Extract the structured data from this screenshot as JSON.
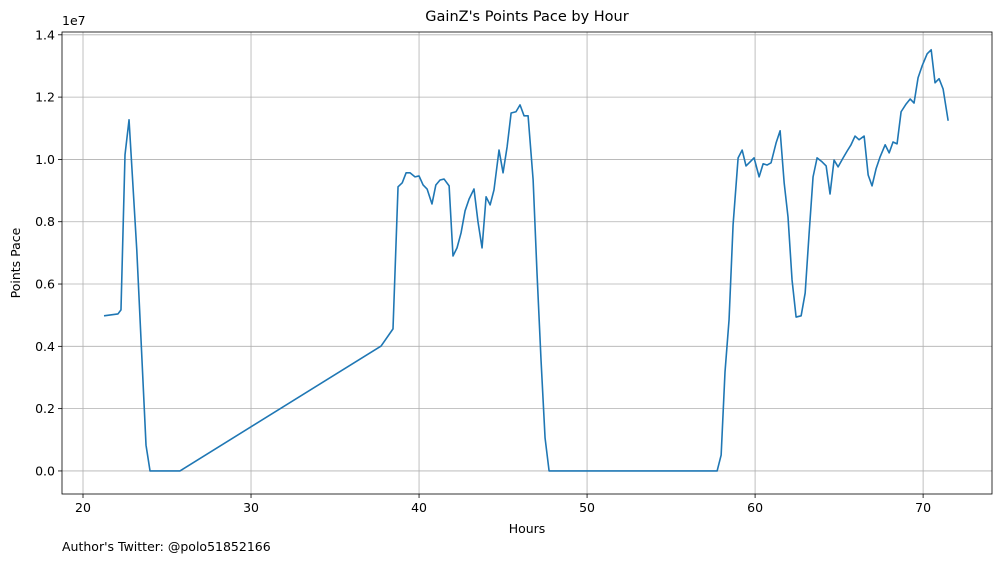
{
  "chart_data": {
    "type": "line",
    "title": "GainZ's Points Pace by Hour",
    "xlabel": "Hours",
    "ylabel": "Points Pace",
    "y_offset_label": "1e7",
    "footnote": "Author's Twitter: @polo51852166",
    "color": "#1f77b4",
    "grid": true,
    "x": [
      21.25,
      22.08,
      22.26,
      22.5,
      22.74,
      23.2,
      23.75,
      23.99,
      25.77,
      37.74,
      38.45,
      38.75,
      39.0,
      39.23,
      39.46,
      39.76,
      40.0,
      40.24,
      40.48,
      40.77,
      41.0,
      41.25,
      41.49,
      41.79,
      42.02,
      42.26,
      42.5,
      42.74,
      42.98,
      43.27,
      43.51,
      43.75,
      43.99,
      44.23,
      44.46,
      44.76,
      45.0,
      45.24,
      45.48,
      45.77,
      46.01,
      46.25,
      46.49,
      46.79,
      47.02,
      47.26,
      47.5,
      47.74,
      57.74,
      57.98,
      58.21,
      58.45,
      58.69,
      58.99,
      59.23,
      59.46,
      59.7,
      59.94,
      60.24,
      60.48,
      60.71,
      60.95,
      61.25,
      61.49,
      61.73,
      61.96,
      62.2,
      62.44,
      62.74,
      62.98,
      63.21,
      63.45,
      63.69,
      63.99,
      64.23,
      64.46,
      64.7,
      64.94,
      65.24,
      65.48,
      65.71,
      65.95,
      66.19,
      66.49,
      66.73,
      66.96,
      67.2,
      67.44,
      67.74,
      67.98,
      68.21,
      68.45,
      68.69,
      68.99,
      69.23,
      69.46,
      69.7,
      69.94,
      70.24,
      70.48,
      70.71,
      70.95,
      71.19,
      71.49
    ],
    "values": [
      0.498,
      0.504,
      0.517,
      1.015,
      1.127,
      0.71,
      0.083,
      0.0,
      0.0,
      0.401,
      0.456,
      0.912,
      0.925,
      0.957,
      0.957,
      0.944,
      0.947,
      0.918,
      0.905,
      0.857,
      0.918,
      0.934,
      0.937,
      0.915,
      0.69,
      0.716,
      0.764,
      0.835,
      0.873,
      0.905,
      0.799,
      0.716,
      0.88,
      0.854,
      0.902,
      1.03,
      0.957,
      1.04,
      1.149,
      1.153,
      1.175,
      1.14,
      1.14,
      0.934,
      0.636,
      0.356,
      0.106,
      0.0,
      0.0,
      0.051,
      0.318,
      0.485,
      0.79,
      1.005,
      1.03,
      0.979,
      0.992,
      1.005,
      0.944,
      0.986,
      0.982,
      0.989,
      1.053,
      1.092,
      0.925,
      0.815,
      0.613,
      0.494,
      0.498,
      0.571,
      0.758,
      0.944,
      1.005,
      0.992,
      0.979,
      0.889,
      0.998,
      0.976,
      1.005,
      1.027,
      1.047,
      1.075,
      1.063,
      1.075,
      0.95,
      0.915,
      0.97,
      1.008,
      1.047,
      1.021,
      1.056,
      1.05,
      1.153,
      1.178,
      1.194,
      1.181,
      1.262,
      1.3,
      1.339,
      1.352,
      1.246,
      1.259,
      1.226,
      1.124
    ],
    "xlim": [
      18.75,
      74.1
    ],
    "xticks": [
      20,
      30,
      40,
      50,
      60,
      70
    ],
    "ylim": [
      -0.074,
      1.409
    ],
    "yticks": [
      {
        "value": 0,
        "label": "0.0"
      },
      0.2,
      0.4,
      0.6,
      0.8,
      {
        "value": 1,
        "label": "1.0"
      },
      1.2,
      1.4
    ]
  }
}
